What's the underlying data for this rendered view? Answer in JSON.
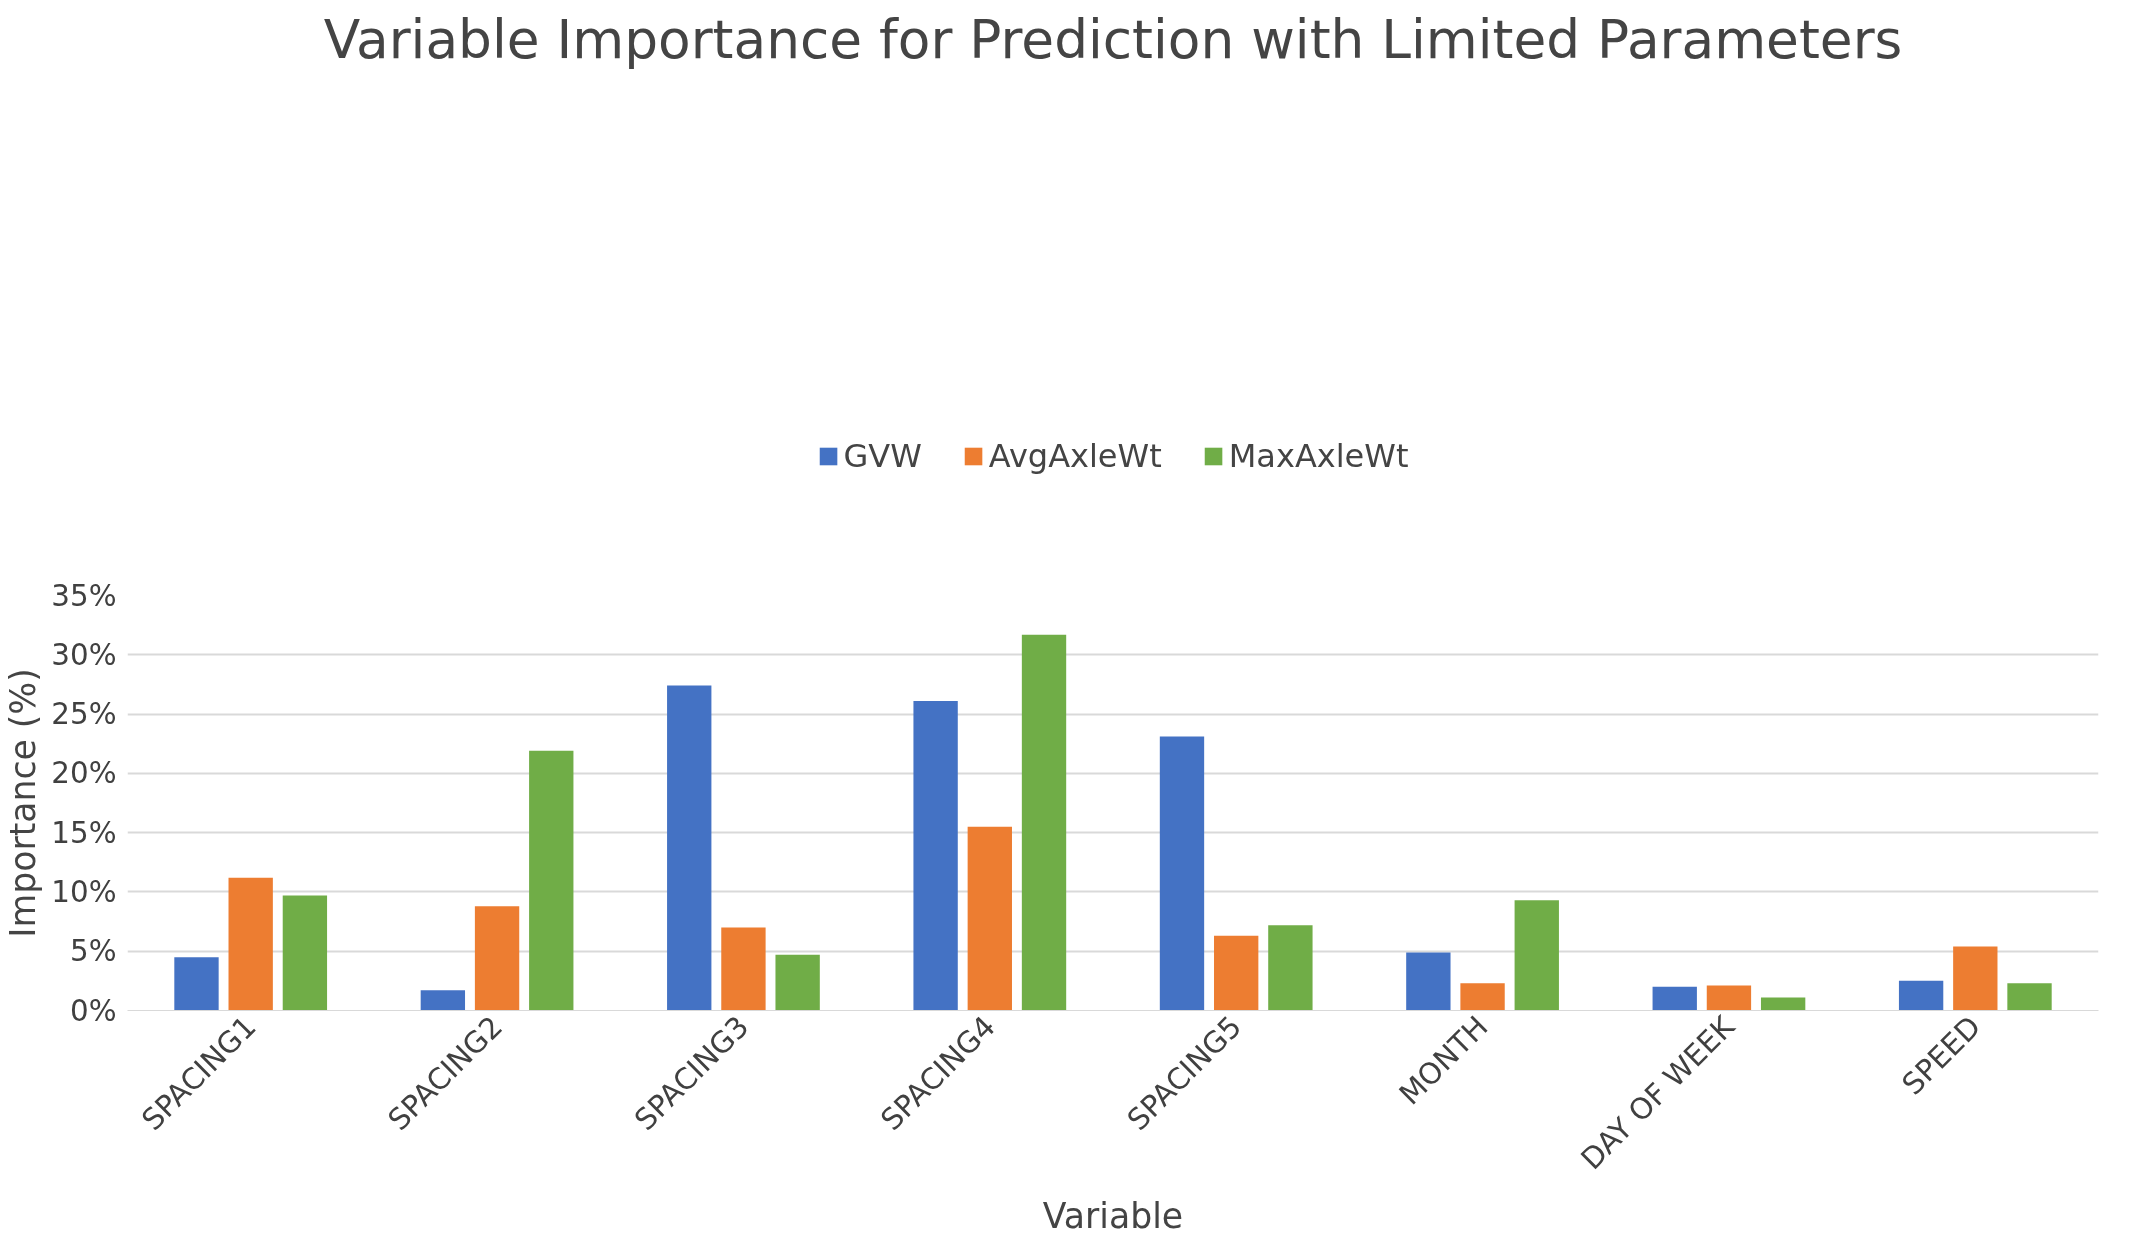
{
  "chart_data": {
    "type": "bar",
    "title": "Variable Importance for Prediction with Limited Parameters",
    "xlabel": "Variable",
    "ylabel": "Importance (%)",
    "categories": [
      "SPACING1",
      "SPACING2",
      "SPACING3",
      "SPACING4",
      "SPACING5",
      "MONTH",
      "DAY OF WEEK",
      "SPEED"
    ],
    "series": [
      {
        "name": "GVW",
        "color": "#4472c4",
        "values": [
          4.5,
          1.7,
          27.4,
          26.1,
          23.1,
          4.9,
          2.0,
          2.5
        ]
      },
      {
        "name": "AvgAxleWt",
        "color": "#ed7d31",
        "values": [
          11.2,
          8.8,
          7.0,
          15.5,
          6.3,
          2.3,
          2.1,
          5.4
        ]
      },
      {
        "name": "MaxAxleWt",
        "color": "#70ad47",
        "values": [
          9.7,
          21.9,
          4.7,
          31.7,
          7.2,
          9.3,
          1.1,
          2.3
        ]
      }
    ],
    "ylim": [
      0,
      35
    ],
    "yticks": [
      {
        "value": 0,
        "label": "0%"
      },
      {
        "value": 5,
        "label": "5%"
      },
      {
        "value": 10,
        "label": "10%"
      },
      {
        "value": 15,
        "label": "15%"
      },
      {
        "value": 20,
        "label": "20%"
      },
      {
        "value": 25,
        "label": "25%"
      },
      {
        "value": 30,
        "label": "30%"
      },
      {
        "value": 35,
        "label": "35%"
      }
    ],
    "grid": "y",
    "legend": "top"
  }
}
